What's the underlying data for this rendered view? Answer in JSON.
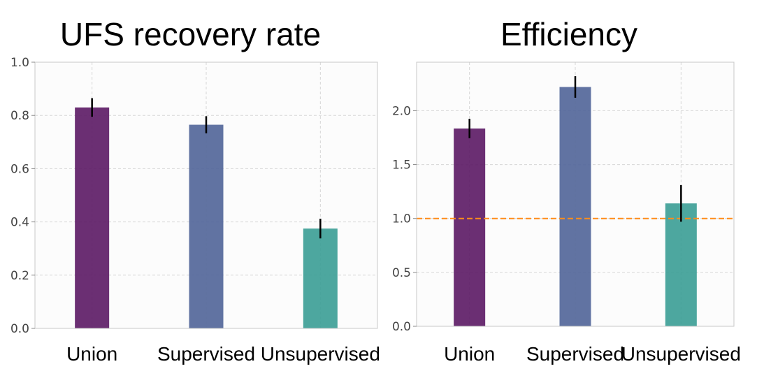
{
  "chart_data": [
    {
      "type": "bar",
      "title": "UFS recovery rate",
      "xlabel": "",
      "ylabel": "",
      "categories": [
        "Union",
        "Supervised",
        "Unsupervised"
      ],
      "values": [
        0.83,
        0.765,
        0.375
      ],
      "errors": [
        0.035,
        0.032,
        0.037
      ],
      "colors": [
        "#5e1d67",
        "#54679a",
        "#3ea097"
      ],
      "ylim": [
        0,
        1.0
      ],
      "yticks": [
        0.0,
        0.2,
        0.4,
        0.6,
        0.8,
        1.0
      ],
      "ytick_labels": [
        "0.0",
        "0.2",
        "0.4",
        "0.6",
        "0.8",
        "1.0"
      ],
      "grid": true
    },
    {
      "type": "bar",
      "title": "Efficiency",
      "xlabel": "",
      "ylabel": "",
      "categories": [
        "Union",
        "Supervised",
        "Unsupervised"
      ],
      "values": [
        1.835,
        2.22,
        1.14
      ],
      "errors": [
        0.09,
        0.1,
        0.17
      ],
      "colors": [
        "#5e1d67",
        "#54679a",
        "#3ea097"
      ],
      "ylim": [
        0,
        2.45
      ],
      "yticks": [
        0.0,
        0.5,
        1.0,
        1.5,
        2.0
      ],
      "ytick_labels": [
        "0.0",
        "0.5",
        "1.0",
        "1.5",
        "2.0"
      ],
      "reference_line": {
        "y": 1.0,
        "color": "#ff8c1a",
        "style": "dashed"
      },
      "grid": true
    }
  ]
}
